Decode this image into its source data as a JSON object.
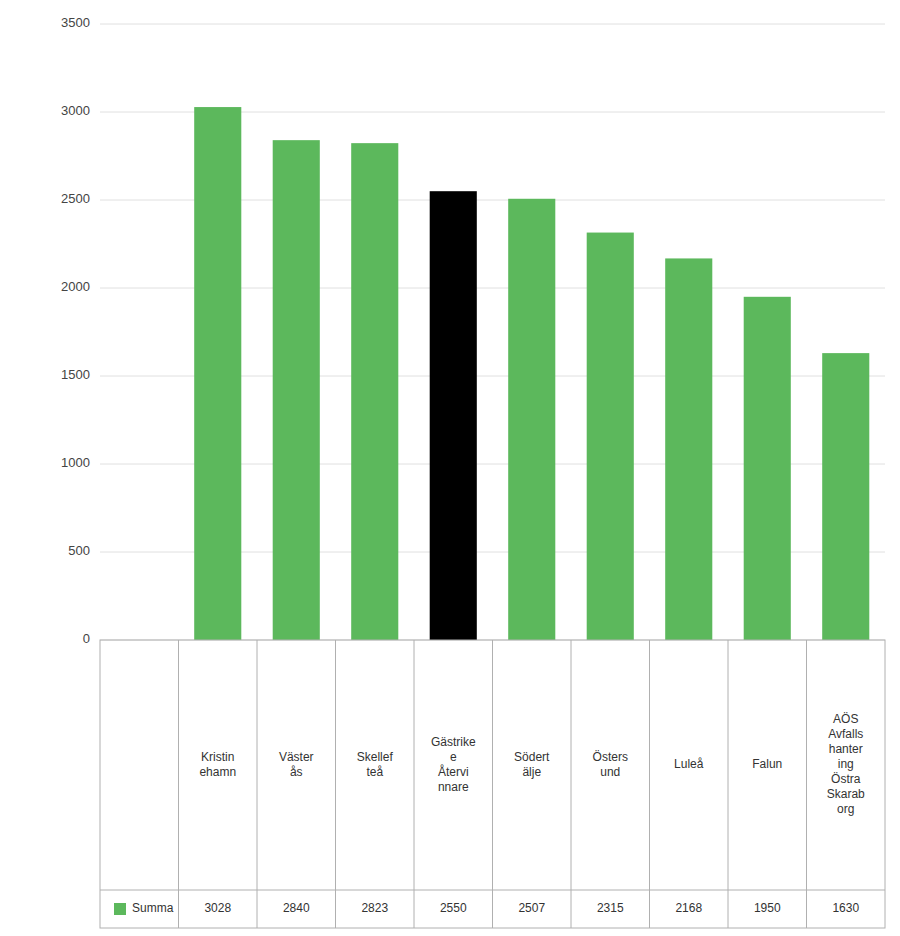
{
  "chart_data": {
    "type": "bar",
    "categories": [
      "Kristin\nehamn",
      "Väster\nås",
      "Skellef\nteå",
      "Gästrike\ne\nÅtervi\nnnare",
      "Södert\nälje",
      "Östers\nund",
      "Luleå",
      "Falun",
      "AÖS\nAvfalls\nhanter\ning\nÖstra\nSkarab\norg"
    ],
    "series": [
      {
        "name": "Summa",
        "color": "#5cb85c",
        "colors": [
          "#5cb85c",
          "#5cb85c",
          "#5cb85c",
          "#000000",
          "#5cb85c",
          "#5cb85c",
          "#5cb85c",
          "#5cb85c",
          "#5cb85c"
        ],
        "values": [
          3028,
          2840,
          2823,
          2550,
          2507,
          2315,
          2168,
          1950,
          1630
        ]
      }
    ],
    "ylim": [
      0,
      3500
    ],
    "yticks": [
      0,
      500,
      1000,
      1500,
      2000,
      2500,
      3000,
      3500
    ],
    "grid": true,
    "legend": "bottom",
    "data_labels": true
  }
}
